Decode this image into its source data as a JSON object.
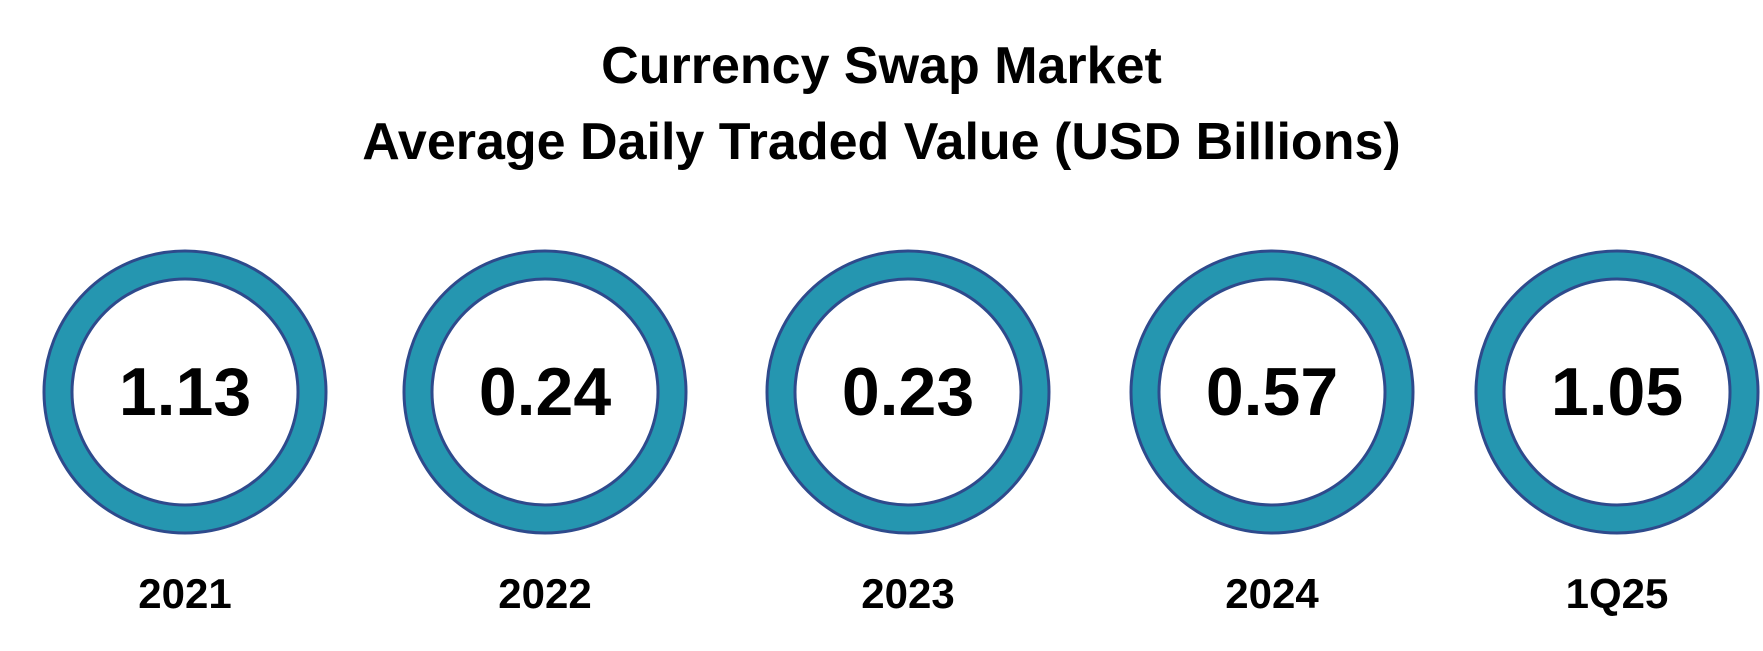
{
  "chart_data": {
    "type": "table",
    "title": "Currency Swap Market",
    "subtitle": "Average Daily Traded Value (USD Billions)",
    "categories": [
      "2021",
      "2022",
      "2023",
      "2024",
      "1Q25"
    ],
    "values": [
      1.13,
      0.24,
      0.23,
      0.57,
      1.05
    ],
    "value_labels": [
      "1.13",
      "0.24",
      "0.23",
      "0.57",
      "1.05"
    ],
    "legend": "none",
    "grid": false
  },
  "colors": {
    "ring_fill": "#2596b0",
    "ring_border": "#2e4a8c",
    "inner_fill": "#ffffff",
    "text": "#000000"
  }
}
